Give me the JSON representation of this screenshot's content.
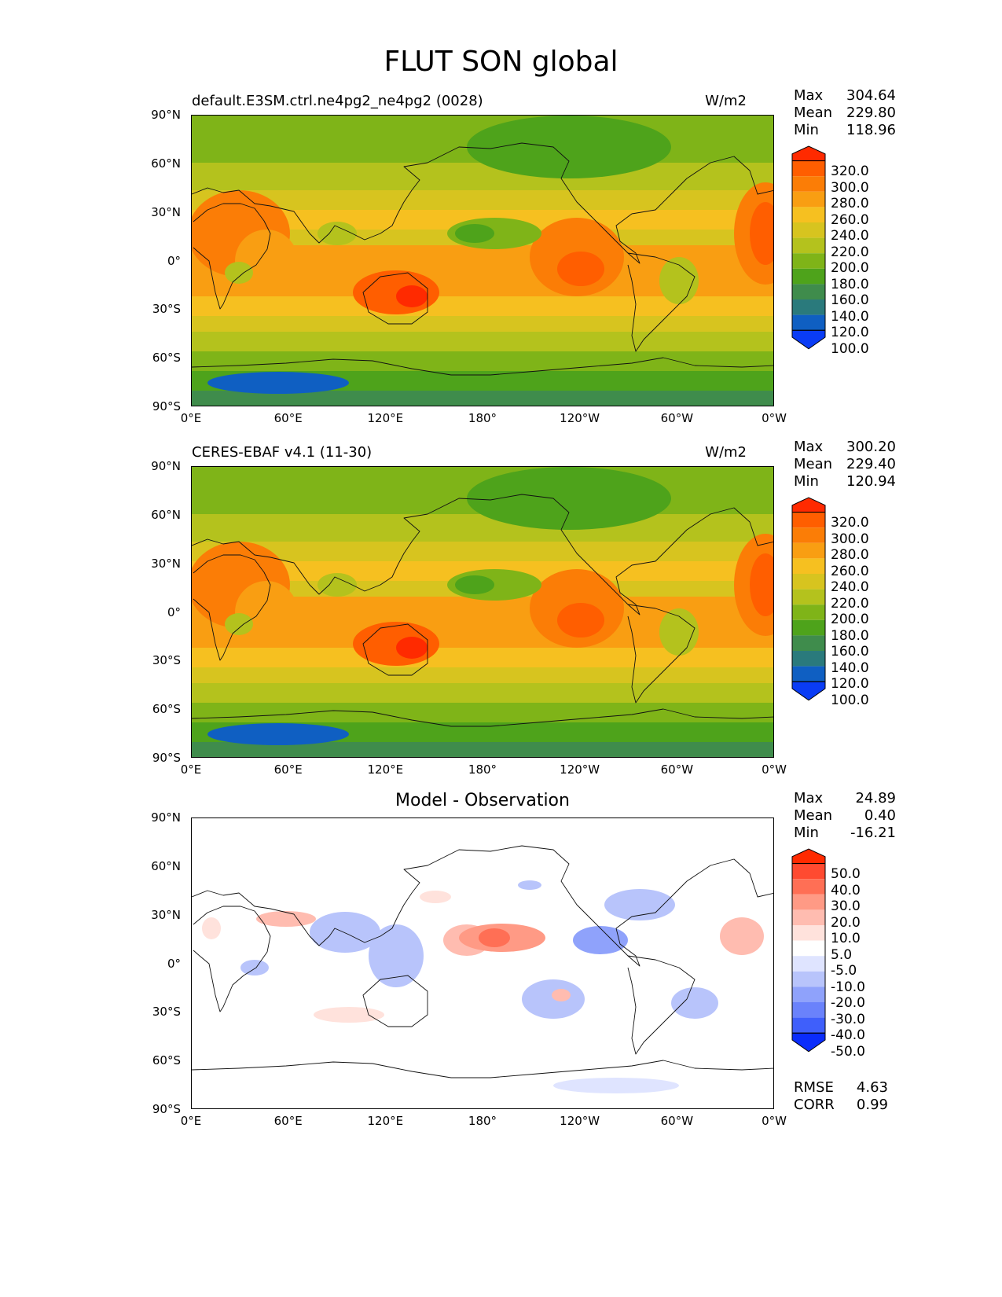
{
  "figure": {
    "title": "FLUT SON global"
  },
  "axes": {
    "yticks": [
      "90°N",
      "60°N",
      "30°N",
      "0°",
      "30°S",
      "60°S",
      "90°S"
    ],
    "xticks": [
      "0°E",
      "60°E",
      "120°E",
      "180°",
      "120°W",
      "60°W",
      "0°W"
    ]
  },
  "panels": [
    {
      "id": "model",
      "label": "default.E3SM.ctrl.ne4pg2_ne4pg2 (0028)",
      "units": "W/m2",
      "stats": {
        "max_label": "Max",
        "max": "304.64",
        "mean_label": "Mean",
        "mean": "229.80",
        "min_label": "Min",
        "min": "118.96"
      },
      "colorbar": {
        "labels": [
          "320.0",
          "300.0",
          "280.0",
          "260.0",
          "240.0",
          "220.0",
          "200.0",
          "180.0",
          "160.0",
          "140.0",
          "120.0",
          "100.0"
        ],
        "colors": [
          "#ff2a00",
          "#ff5e00",
          "#fb7d06",
          "#f99e12",
          "#f6c020",
          "#d7c41f",
          "#b4c21d",
          "#7fb418",
          "#4ea31b",
          "#3f8c4c",
          "#2a7a7c",
          "#0f5fc2",
          "#0a3cf5"
        ]
      }
    },
    {
      "id": "obs",
      "label": "CERES-EBAF v4.1 (11-30)",
      "units": "W/m2",
      "stats": {
        "max_label": "Max",
        "max": "300.20",
        "mean_label": "Mean",
        "mean": "229.40",
        "min_label": "Min",
        "min": "120.94"
      },
      "colorbar": {
        "labels": [
          "320.0",
          "300.0",
          "280.0",
          "260.0",
          "240.0",
          "220.0",
          "200.0",
          "180.0",
          "160.0",
          "140.0",
          "120.0",
          "100.0"
        ],
        "colors": [
          "#ff2a00",
          "#ff5e00",
          "#fb7d06",
          "#f99e12",
          "#f6c020",
          "#d7c41f",
          "#b4c21d",
          "#7fb418",
          "#4ea31b",
          "#3f8c4c",
          "#2a7a7c",
          "#0f5fc2",
          "#0a3cf5"
        ]
      }
    },
    {
      "id": "diff",
      "title": "Model - Observation",
      "stats": {
        "max_label": "Max",
        "max": "24.89",
        "mean_label": "Mean",
        "mean": "0.40",
        "min_label": "Min",
        "min": "-16.21"
      },
      "colorbar": {
        "labels": [
          "50.0",
          "40.0",
          "30.0",
          "20.0",
          "10.0",
          "5.0",
          "-5.0",
          "-10.0",
          "-20.0",
          "-30.0",
          "-40.0",
          "-50.0"
        ],
        "colors": [
          "#ff2a00",
          "#ff4a30",
          "#ff6f55",
          "#ff9a85",
          "#ffbcb0",
          "#ffe2dc",
          "#ffffff",
          "#dfe4ff",
          "#b8c4fb",
          "#8fa2fb",
          "#6a82fb",
          "#3f5ffb",
          "#0a2cfb"
        ]
      },
      "metrics": {
        "rmse_label": "RMSE",
        "rmse": "4.63",
        "corr_label": "CORR",
        "corr": "0.99"
      }
    }
  ]
}
